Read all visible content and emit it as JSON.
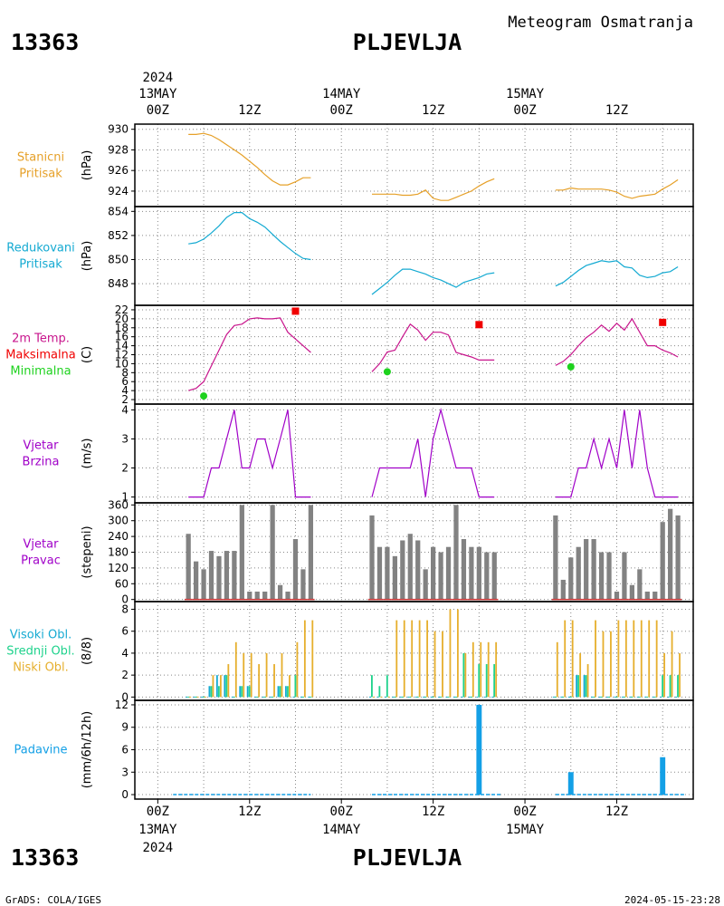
{
  "header": {
    "station_id": "13363",
    "station_name": "PLJEVLJA",
    "title": "Meteogram Osmatranja"
  },
  "footer": {
    "station_id": "13363",
    "station_name": "PLJEVLJA",
    "credit": "GrADS: COLA/IGES",
    "timestamp": "2024-05-15-23:28"
  },
  "time_axis": {
    "year": "2024",
    "ticks": [
      {
        "hour": 0,
        "time": "00Z",
        "date": "13MAY"
      },
      {
        "hour": 12,
        "time": "12Z",
        "date": ""
      },
      {
        "hour": 24,
        "time": "00Z",
        "date": "14MAY"
      },
      {
        "hour": 36,
        "time": "12Z",
        "date": ""
      },
      {
        "hour": 48,
        "time": "00Z",
        "date": "15MAY"
      },
      {
        "hour": 60,
        "time": "12Z",
        "date": ""
      }
    ],
    "range_hours": [
      -3,
      70
    ]
  },
  "colors": {
    "pressure_station": "#e6a028",
    "pressure_reduced": "#14aad2",
    "temperature": "#c8148c",
    "temp_max": "#f00000",
    "temp_min": "#1ed21e",
    "wind": "#a000c8",
    "wind_dir_bar": "#828282",
    "wind_dir_base": "#c83232",
    "cloud_high": "#14aad2",
    "cloud_mid": "#1ed28c",
    "cloud_low": "#e6af2d",
    "precip": "#14a0e6"
  },
  "chart_data": [
    {
      "type": "line",
      "id": "station_pressure",
      "panel_label": [
        "Stanicni",
        "Pritisak"
      ],
      "ylabel": "(hPa)",
      "ylim": [
        922.5,
        930.5
      ],
      "yticks": [
        924,
        926,
        928,
        930
      ],
      "series": [
        {
          "color_key": "pressure_station",
          "segments": [
            {
              "x": [
                4,
                5,
                6,
                7,
                8,
                9,
                10,
                11,
                12,
                13,
                14,
                15,
                16,
                17,
                18,
                19,
                20
              ],
              "y": [
                929.5,
                929.5,
                929.6,
                929.4,
                929.0,
                928.5,
                928.0,
                927.5,
                926.9,
                926.3,
                925.6,
                925.0,
                924.6,
                924.6,
                924.9,
                925.3,
                925.3
              ]
            },
            {
              "x": [
                28,
                29,
                30,
                31,
                32,
                33,
                34,
                35,
                36,
                37,
                38,
                39,
                40,
                41,
                42,
                43,
                44
              ],
              "y": [
                923.7,
                923.7,
                923.7,
                923.7,
                923.6,
                923.6,
                923.7,
                924.1,
                923.3,
                923.1,
                923.1,
                923.4,
                923.7,
                924.0,
                924.5,
                924.9,
                925.2
              ]
            },
            {
              "x": [
                52,
                53,
                54,
                55,
                56,
                57,
                58,
                59,
                60,
                61,
                62,
                63,
                64,
                65,
                66,
                67,
                68
              ],
              "y": [
                924.1,
                924.1,
                924.3,
                924.2,
                924.2,
                924.2,
                924.2,
                924.1,
                923.9,
                923.5,
                923.3,
                923.5,
                923.6,
                923.7,
                924.2,
                924.6,
                925.1
              ]
            }
          ]
        }
      ]
    },
    {
      "type": "line",
      "id": "reduced_pressure",
      "panel_label": [
        "Redukovani",
        "Pritisak"
      ],
      "ylabel": "(hPa)",
      "ylim": [
        846.2,
        854.4
      ],
      "yticks": [
        848,
        850,
        852,
        854
      ],
      "series": [
        {
          "color_key": "pressure_reduced",
          "segments": [
            {
              "x": [
                4,
                5,
                6,
                7,
                8,
                9,
                10,
                11,
                12,
                13,
                14,
                15,
                16,
                17,
                18,
                19,
                20
              ],
              "y": [
                851.3,
                851.4,
                851.7,
                852.2,
                852.8,
                853.5,
                853.9,
                853.9,
                853.4,
                853.1,
                852.7,
                852.1,
                851.5,
                851.0,
                850.5,
                850.1,
                850.0
              ]
            },
            {
              "x": [
                28,
                29,
                30,
                31,
                32,
                33,
                34,
                35,
                36,
                37,
                38,
                39,
                40,
                41,
                42,
                43,
                44
              ],
              "y": [
                847.1,
                847.6,
                848.1,
                848.7,
                849.2,
                849.2,
                849.0,
                848.8,
                848.5,
                848.3,
                848.0,
                847.7,
                848.1,
                848.3,
                848.5,
                848.8,
                848.9
              ]
            },
            {
              "x": [
                52,
                53,
                54,
                55,
                56,
                57,
                58,
                59,
                60,
                61,
                62,
                63,
                64,
                65,
                66,
                67,
                68
              ],
              "y": [
                847.8,
                848.1,
                848.6,
                849.1,
                849.5,
                849.7,
                849.9,
                849.8,
                849.9,
                849.4,
                849.3,
                848.7,
                848.5,
                848.6,
                848.9,
                849.0,
                849.4
              ]
            }
          ]
        }
      ]
    },
    {
      "type": "line",
      "id": "temperature",
      "panel_label": [
        "2m Temp.",
        "Maksimalna",
        "Minimalna"
      ],
      "ylabel": "(C)",
      "ylim": [
        1,
        23
      ],
      "yticks": [
        2,
        4,
        6,
        8,
        10,
        12,
        14,
        16,
        18,
        20,
        22
      ],
      "series": [
        {
          "color_key": "temperature",
          "segments": [
            {
              "x": [
                4,
                5,
                6,
                7,
                8,
                9,
                10,
                11,
                12,
                13,
                14,
                15,
                16,
                17,
                18,
                19,
                20
              ],
              "y": [
                4,
                4.5,
                6,
                9.5,
                13,
                16.5,
                18.5,
                18.8,
                20,
                20.2,
                20,
                20,
                20.2,
                17,
                15.5,
                14,
                12.5
              ]
            },
            {
              "x": [
                28,
                29,
                30,
                31,
                32,
                33,
                34,
                35,
                36,
                37,
                38,
                39,
                40,
                41,
                42,
                43,
                44
              ],
              "y": [
                8.2,
                10,
                12.6,
                13,
                16,
                18.8,
                17.5,
                15.2,
                17,
                17,
                16.4,
                12.5,
                12,
                11.5,
                10.8,
                10.8,
                10.8
              ]
            },
            {
              "x": [
                52,
                53,
                54,
                55,
                56,
                57,
                58,
                59,
                60,
                61,
                62,
                63,
                64,
                65,
                66,
                67,
                68
              ],
              "y": [
                9.6,
                10.5,
                12,
                14,
                15.8,
                17,
                18.6,
                17.2,
                19,
                17.5,
                20,
                17,
                14,
                14,
                13,
                12.4,
                11.5
              ]
            }
          ]
        }
      ],
      "max_markers": {
        "color_key": "temp_max",
        "x": [
          18,
          42,
          66
        ],
        "y": [
          21.7,
          18.7,
          19.2
        ]
      },
      "min_markers": {
        "color_key": "temp_min",
        "x": [
          6,
          30,
          54
        ],
        "y": [
          2.8,
          8.2,
          9.3
        ]
      }
    },
    {
      "type": "line",
      "id": "wind_speed",
      "panel_label": [
        "Vjetar",
        "Brzina"
      ],
      "ylabel": "(m/s)",
      "ylim": [
        0.8,
        4.2
      ],
      "yticks": [
        1,
        2,
        3,
        4
      ],
      "series": [
        {
          "color_key": "wind",
          "segments": [
            {
              "x": [
                4,
                5,
                6,
                7,
                8,
                9,
                10,
                11,
                12,
                13,
                14,
                15,
                16,
                17,
                18,
                19,
                20
              ],
              "y": [
                1,
                1,
                1,
                2,
                2,
                3,
                4,
                2,
                2,
                3,
                3,
                2,
                3,
                4,
                1,
                1,
                1
              ]
            },
            {
              "x": [
                28,
                29,
                30,
                31,
                32,
                33,
                34,
                35,
                36,
                37,
                38,
                39,
                40,
                41,
                42,
                43,
                44
              ],
              "y": [
                1,
                2,
                2,
                2,
                2,
                2,
                3,
                1,
                3,
                4,
                3,
                2,
                2,
                2,
                1,
                1,
                1
              ]
            },
            {
              "x": [
                52,
                53,
                54,
                55,
                56,
                57,
                58,
                59,
                60,
                61,
                62,
                63,
                64,
                65,
                66,
                67,
                68
              ],
              "y": [
                1,
                1,
                1,
                2,
                2,
                3,
                2,
                3,
                2,
                4,
                2,
                4,
                2,
                1,
                1,
                1,
                1
              ]
            }
          ]
        }
      ]
    },
    {
      "type": "bar",
      "id": "wind_direction",
      "panel_label": [
        "Vjetar",
        "Pravac"
      ],
      "ylabel": "(stepeni)",
      "ylim": [
        -8,
        368
      ],
      "yticks": [
        0,
        60,
        120,
        180,
        240,
        300,
        360
      ],
      "color_key": "wind_dir_bar",
      "base_color_key": "wind_dir_base",
      "x": [
        4,
        5,
        6,
        7,
        8,
        9,
        10,
        11,
        12,
        13,
        14,
        15,
        16,
        17,
        18,
        19,
        20,
        28,
        29,
        30,
        31,
        32,
        33,
        34,
        35,
        36,
        37,
        38,
        39,
        40,
        41,
        42,
        43,
        44,
        52,
        53,
        54,
        55,
        56,
        57,
        58,
        59,
        60,
        61,
        62,
        63,
        64,
        65,
        66,
        67,
        68
      ],
      "values": [
        250,
        145,
        115,
        185,
        165,
        185,
        185,
        360,
        30,
        30,
        30,
        360,
        55,
        30,
        230,
        115,
        360,
        320,
        200,
        200,
        165,
        225,
        250,
        225,
        115,
        200,
        180,
        200,
        360,
        230,
        200,
        200,
        180,
        180,
        320,
        75,
        160,
        200,
        230,
        230,
        180,
        180,
        30,
        180,
        55,
        115,
        30,
        30,
        295,
        345,
        320
      ]
    },
    {
      "type": "bar",
      "id": "clouds",
      "panel_label": [
        "Visoki Obl.",
        "Srednji Obl.",
        "Niski Obl."
      ],
      "ylabel": "(8/8)",
      "ylim": [
        -0.3,
        8.7
      ],
      "yticks": [
        0,
        2,
        4,
        6,
        8
      ],
      "x": [
        4,
        5,
        6,
        7,
        8,
        9,
        10,
        11,
        12,
        13,
        14,
        15,
        16,
        17,
        18,
        19,
        20,
        28,
        29,
        30,
        31,
        32,
        33,
        34,
        35,
        36,
        37,
        38,
        39,
        40,
        41,
        42,
        43,
        44,
        52,
        53,
        54,
        55,
        56,
        57,
        58,
        59,
        60,
        61,
        62,
        63,
        64,
        65,
        66,
        67,
        68
      ],
      "series": [
        {
          "name_index": 0,
          "color_key": "cloud_high",
          "values": [
            0,
            0,
            0,
            1,
            2,
            2,
            0,
            1,
            1,
            0,
            0,
            0,
            1,
            1,
            0,
            0,
            0,
            0,
            0,
            0,
            0,
            0,
            0,
            0,
            0,
            0,
            0,
            0,
            0,
            0,
            0,
            0,
            0,
            0,
            0,
            0,
            0,
            2,
            2,
            0,
            0,
            0,
            0,
            0,
            0,
            0,
            0,
            0,
            0,
            0,
            0
          ]
        },
        {
          "name_index": 1,
          "color_key": "cloud_mid",
          "values": [
            0,
            0,
            0,
            1,
            1,
            2,
            0,
            1,
            1,
            0,
            0,
            0,
            1,
            1,
            2,
            0,
            0,
            2,
            1,
            2,
            0,
            0,
            0,
            0,
            0,
            0,
            0,
            0,
            0,
            4,
            0,
            3,
            3,
            3,
            0,
            0,
            0,
            2,
            2,
            0,
            0,
            0,
            0,
            0,
            0,
            0,
            0,
            0,
            2,
            2,
            2
          ]
        },
        {
          "name_index": 2,
          "color_key": "cloud_low",
          "values": [
            0,
            0,
            0,
            2,
            2,
            3,
            5,
            4,
            4,
            3,
            4,
            3,
            4,
            2,
            5,
            7,
            7,
            0,
            0,
            0,
            7,
            7,
            7,
            7,
            7,
            6,
            6,
            8,
            8,
            4,
            5,
            5,
            5,
            5,
            5,
            7,
            7,
            4,
            3,
            7,
            6,
            6,
            7,
            7,
            7,
            7,
            7,
            7,
            4,
            6,
            4
          ]
        }
      ]
    },
    {
      "type": "bar",
      "id": "precipitation",
      "panel_label": [
        "Padavine"
      ],
      "ylabel": "(mm/6h/12h)",
      "ylim": [
        -0.6,
        12.6
      ],
      "yticks": [
        0,
        3,
        6,
        9,
        12
      ],
      "color_key": "precip",
      "x": [
        42,
        54,
        66
      ],
      "values": [
        12,
        3,
        5
      ],
      "zero_segments": [
        [
          2,
          20
        ],
        [
          28,
          45
        ],
        [
          52,
          69
        ]
      ]
    }
  ]
}
